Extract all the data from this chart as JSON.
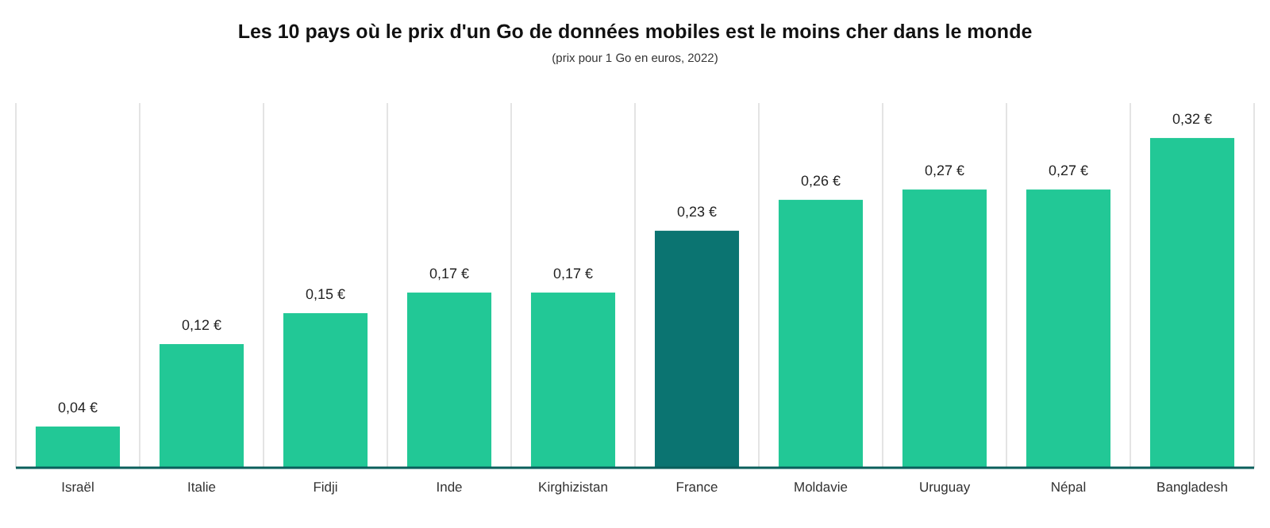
{
  "chart_data": {
    "type": "bar",
    "title": "Les 10 pays où le prix d'un Go de données mobiles est le moins cher dans le monde",
    "subtitle": "(prix pour 1 Go en euros, 2022)",
    "categories": [
      "Israël",
      "Italie",
      "Fidji",
      "Inde",
      "Kirghizistan",
      "France",
      "Moldavie",
      "Uruguay",
      "Népal",
      "Bangladesh"
    ],
    "values": [
      0.04,
      0.12,
      0.15,
      0.17,
      0.17,
      0.23,
      0.26,
      0.27,
      0.27,
      0.32
    ],
    "value_labels": [
      "0,04 €",
      "0,12 €",
      "0,15 €",
      "0,17 €",
      "0,17 €",
      "0,23 €",
      "0,26 €",
      "0,27 €",
      "0,27 €",
      "0,32 €"
    ],
    "colors": [
      "#22c896",
      "#22c896",
      "#22c896",
      "#22c896",
      "#22c896",
      "#0b7471",
      "#22c896",
      "#22c896",
      "#22c896",
      "#22c896"
    ],
    "grid": "x"
  }
}
